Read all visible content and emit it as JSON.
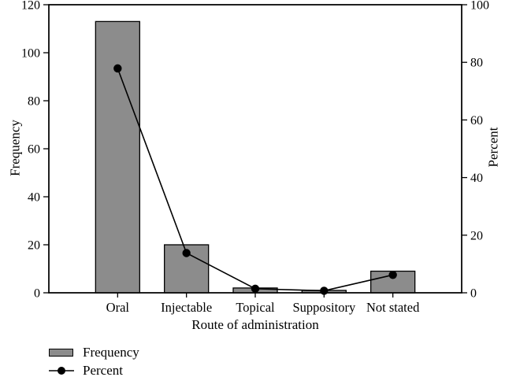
{
  "chart_data": {
    "type": "bar",
    "subtype": "bar-line-combo",
    "title": "",
    "categories": [
      "Oral",
      "Injectable",
      "Topical",
      "Suppository",
      "Not stated"
    ],
    "series": [
      {
        "name": "Frequency",
        "type": "bar",
        "axis": "left",
        "values": [
          113,
          20,
          2,
          1,
          9
        ],
        "color": "#8c8c8c"
      },
      {
        "name": "Percent",
        "type": "line",
        "axis": "right",
        "values": [
          77.9,
          13.8,
          1.4,
          0.7,
          6.2
        ],
        "color": "#000000"
      }
    ],
    "xlabel": "Route of administration",
    "ylabel_left": "Frequency",
    "ylabel_right": "Percent",
    "ylim_left": [
      0,
      120
    ],
    "ylim_right": [
      0,
      100
    ],
    "yticks_left": [
      0,
      20,
      40,
      60,
      80,
      100,
      120
    ],
    "yticks_right": [
      0,
      20,
      40,
      60,
      80,
      100
    ],
    "grid": false,
    "frame": "full-box",
    "legend_position": "bottom-left",
    "legend": [
      {
        "label": "Frequency",
        "swatch": "bar"
      },
      {
        "label": "Percent",
        "swatch": "line-dot"
      }
    ]
  }
}
